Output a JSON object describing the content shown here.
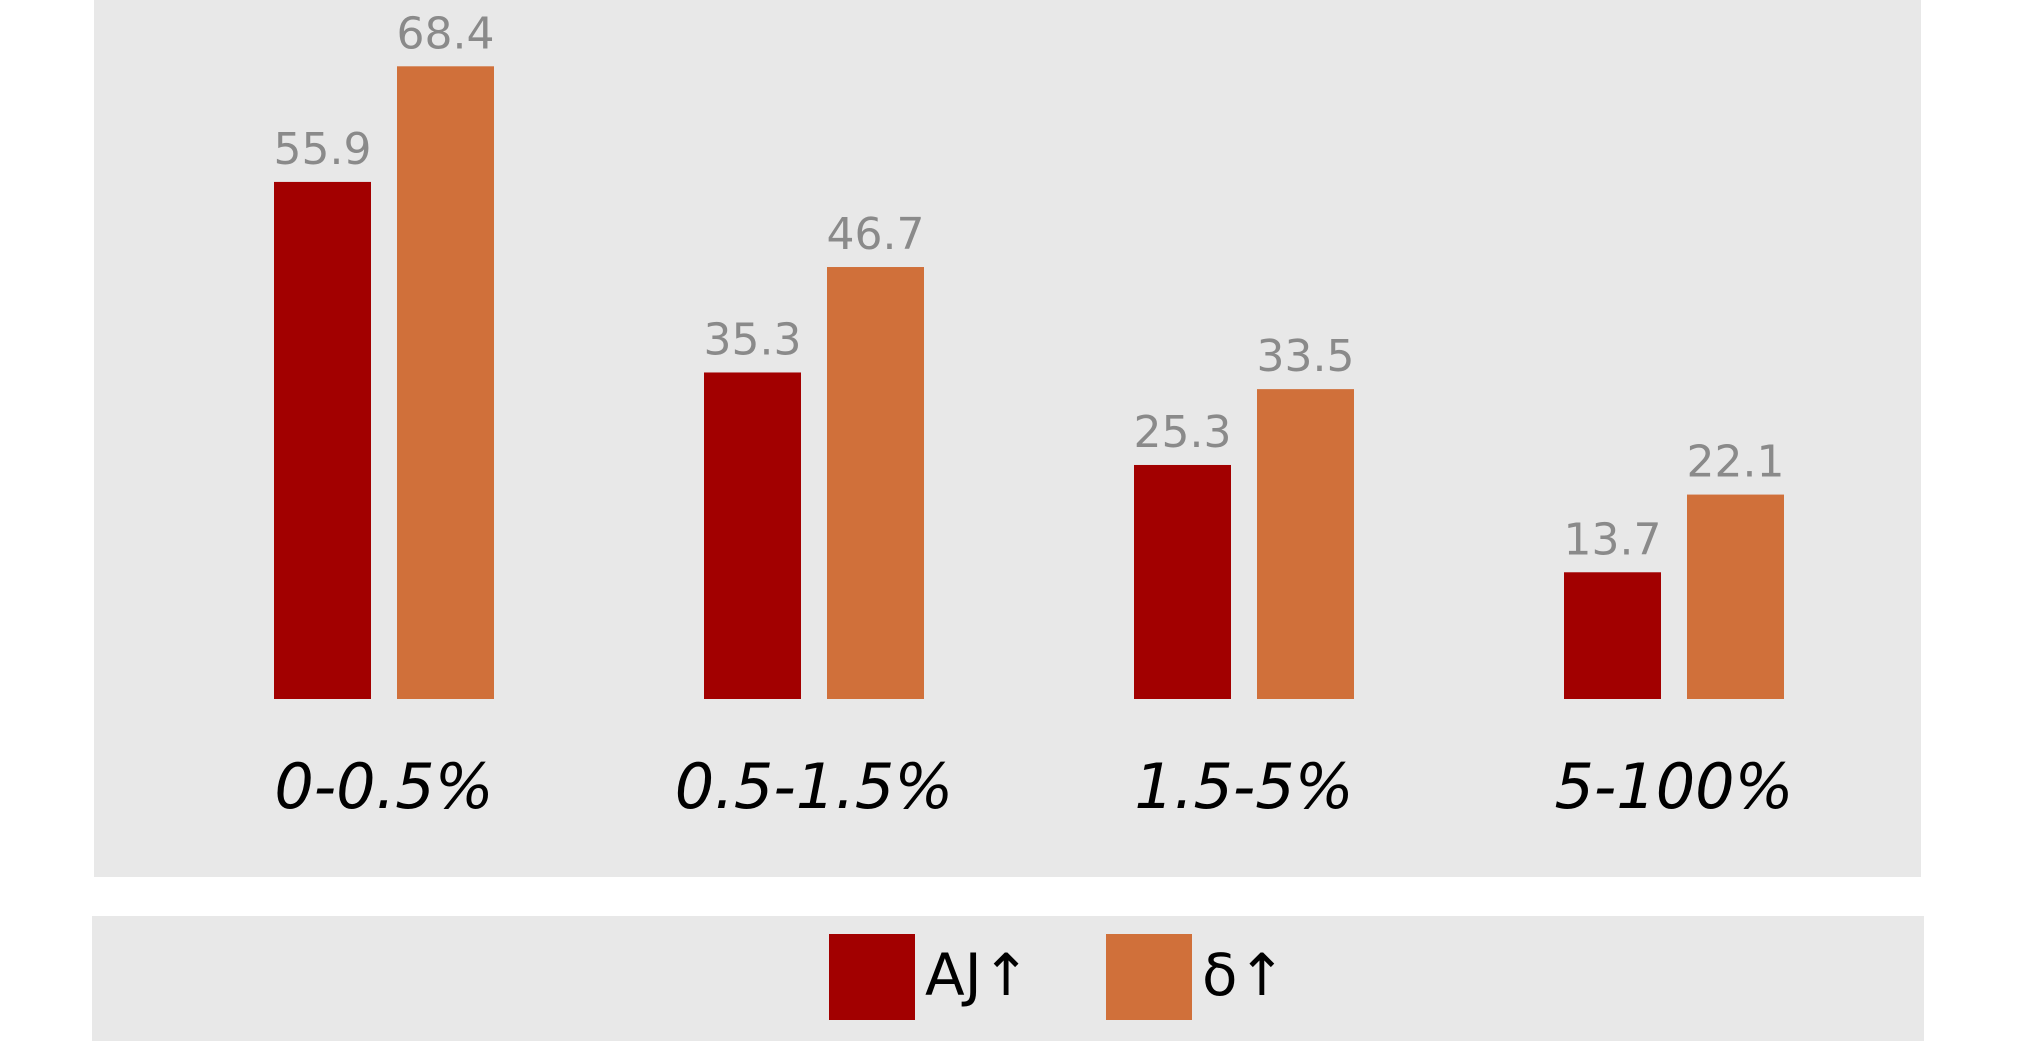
{
  "chart_data": {
    "type": "bar",
    "categories": [
      "0-0.5%",
      "0.5-1.5%",
      "1.5-5%",
      "5-100%"
    ],
    "series": [
      {
        "name": "AJ↑",
        "color": "#a20000",
        "values": [
          55.9,
          35.3,
          25.3,
          13.7
        ]
      },
      {
        "name": "δ↑",
        "color": "#d0703a",
        "values": [
          68.4,
          46.7,
          33.5,
          22.1
        ]
      }
    ],
    "legend": "bottom"
  }
}
